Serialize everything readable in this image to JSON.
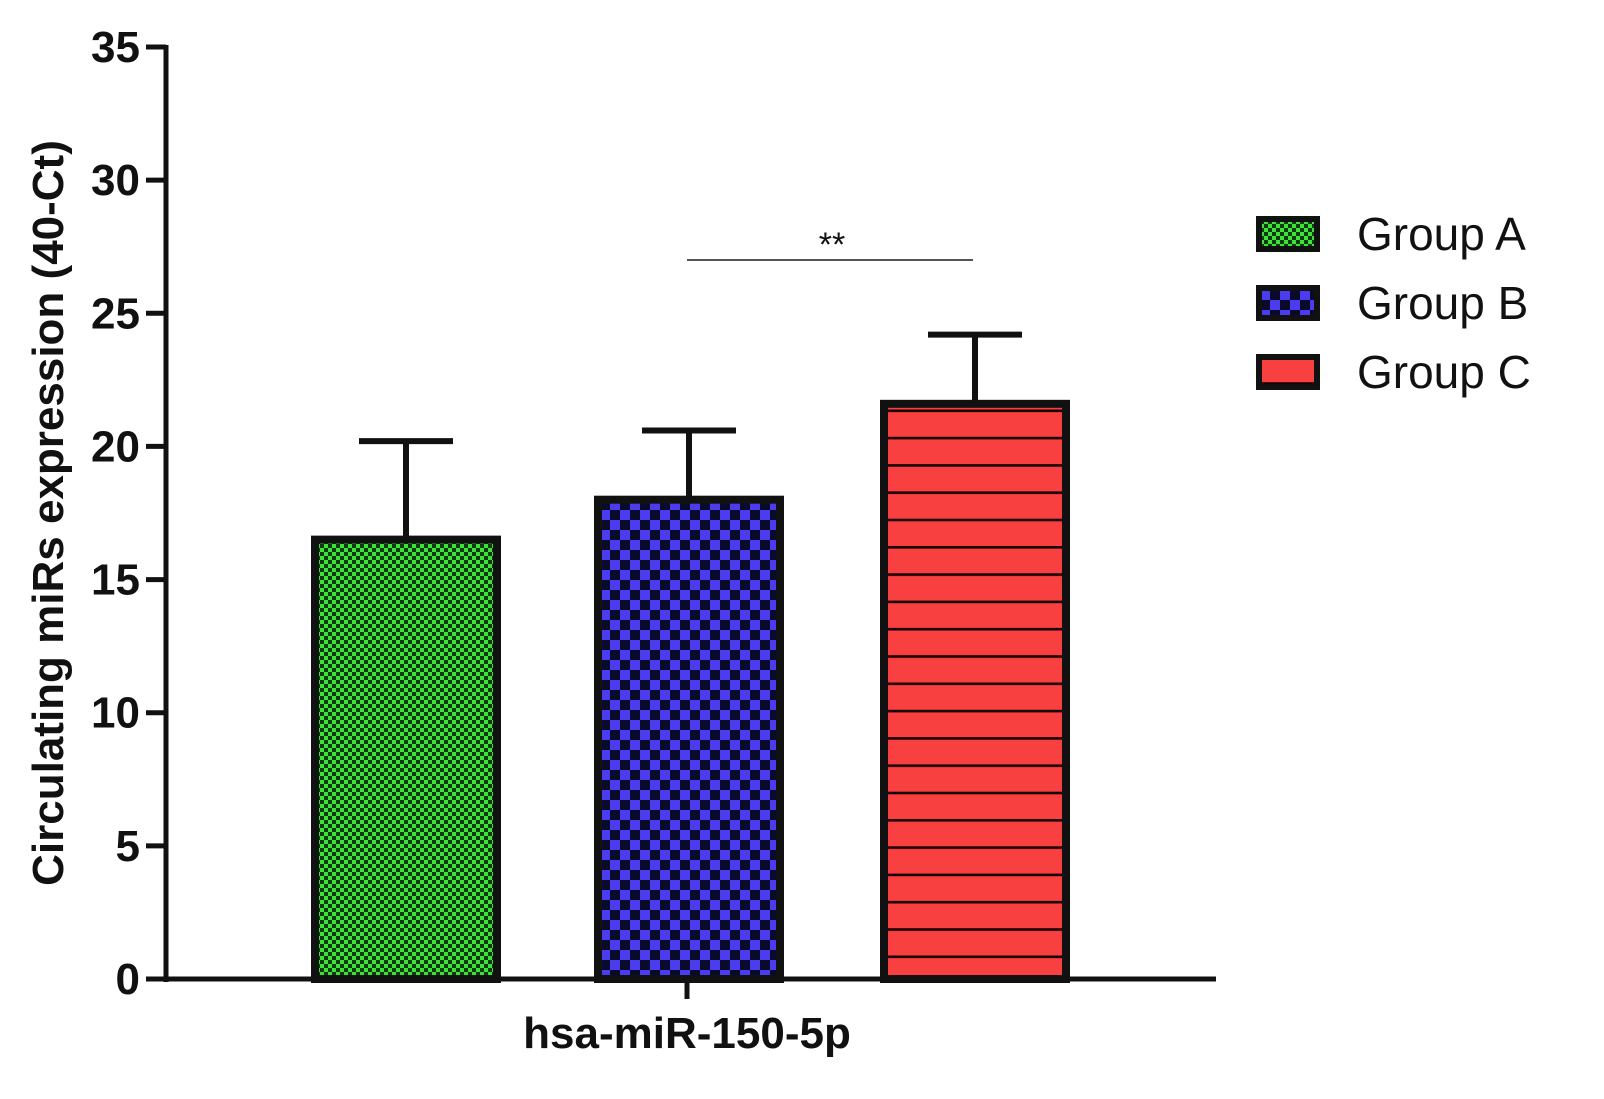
{
  "chart_data": {
    "type": "bar",
    "ylabel": "Circulating miRs expression (40-Ct)",
    "xlabel": "",
    "categories": [
      "hsa-miR-150-5p"
    ],
    "ylim": [
      0,
      35
    ],
    "yticks": [
      0,
      5,
      10,
      15,
      20,
      25,
      30,
      35
    ],
    "grid": false,
    "legend_position": "right",
    "series": [
      {
        "name": "Group A",
        "value": 16.5,
        "error": 3.7,
        "color": "#3ee03a",
        "pattern": "fine-checker"
      },
      {
        "name": "Group B",
        "value": 18.0,
        "error": 2.6,
        "color": "#4b3cf0",
        "pattern": "checker"
      },
      {
        "name": "Group C",
        "value": 21.6,
        "error": 2.6,
        "color": "#f7403f",
        "pattern": "horizontal-lines"
      }
    ],
    "annotations": [
      {
        "text": "**",
        "from_series": "Group B",
        "to_series": "Group C",
        "y": 27.0
      }
    ]
  }
}
